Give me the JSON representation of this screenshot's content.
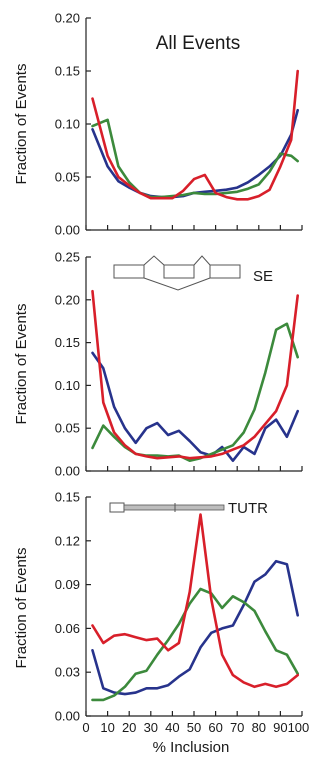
{
  "colors": {
    "blue": "#27338c",
    "green": "#3c8a3c",
    "red": "#d81f2a",
    "axis": "#222222",
    "schematic": "#555555"
  },
  "chart_data": [
    {
      "type": "line",
      "title": "All Events",
      "ylabel": "Fraction of Events",
      "xlabel": "",
      "ylim": [
        0,
        0.2
      ],
      "xlim": [
        0,
        100
      ],
      "yticks": [
        "0.00",
        "0.05",
        "0.10",
        "0.15",
        "0.20"
      ],
      "grid": false,
      "x": [
        3,
        10,
        15,
        20,
        25,
        30,
        35,
        40,
        45,
        50,
        55,
        60,
        65,
        70,
        75,
        80,
        85,
        90,
        95,
        98
      ],
      "series": [
        {
          "color": "blue",
          "values": [
            0.095,
            0.06,
            0.046,
            0.04,
            0.035,
            0.032,
            0.031,
            0.031,
            0.032,
            0.035,
            0.036,
            0.037,
            0.038,
            0.04,
            0.045,
            0.052,
            0.06,
            0.07,
            0.09,
            0.113
          ]
        },
        {
          "color": "green",
          "values": [
            0.098,
            0.104,
            0.06,
            0.045,
            0.035,
            0.031,
            0.031,
            0.032,
            0.033,
            0.035,
            0.034,
            0.034,
            0.035,
            0.036,
            0.039,
            0.043,
            0.055,
            0.072,
            0.07,
            0.065
          ]
        },
        {
          "color": "red",
          "values": [
            0.124,
            0.07,
            0.05,
            0.042,
            0.035,
            0.03,
            0.03,
            0.03,
            0.037,
            0.048,
            0.052,
            0.035,
            0.031,
            0.029,
            0.029,
            0.032,
            0.038,
            0.06,
            0.085,
            0.15
          ]
        }
      ]
    },
    {
      "type": "line",
      "title": "",
      "ylabel": "Fraction of Events",
      "xlabel": "",
      "ylim": [
        0,
        0.25
      ],
      "xlim": [
        0,
        100
      ],
      "yticks": [
        "0.00",
        "0.05",
        "0.10",
        "0.15",
        "0.20",
        "0.25"
      ],
      "annotation": "SE",
      "grid": false,
      "x": [
        3,
        8,
        13,
        18,
        23,
        28,
        33,
        38,
        43,
        48,
        53,
        58,
        63,
        68,
        73,
        78,
        83,
        88,
        93,
        98
      ],
      "series": [
        {
          "color": "blue",
          "values": [
            0.138,
            0.12,
            0.075,
            0.05,
            0.033,
            0.05,
            0.056,
            0.042,
            0.047,
            0.035,
            0.022,
            0.018,
            0.028,
            0.012,
            0.028,
            0.02,
            0.05,
            0.06,
            0.04,
            0.07
          ]
        },
        {
          "color": "green",
          "values": [
            0.027,
            0.053,
            0.04,
            0.028,
            0.02,
            0.018,
            0.018,
            0.017,
            0.018,
            0.012,
            0.015,
            0.02,
            0.025,
            0.03,
            0.045,
            0.072,
            0.115,
            0.165,
            0.172,
            0.133
          ]
        },
        {
          "color": "red",
          "values": [
            0.21,
            0.08,
            0.045,
            0.03,
            0.02,
            0.017,
            0.015,
            0.016,
            0.017,
            0.015,
            0.016,
            0.017,
            0.02,
            0.025,
            0.03,
            0.04,
            0.055,
            0.07,
            0.1,
            0.205
          ]
        }
      ]
    },
    {
      "type": "line",
      "title": "",
      "ylabel": "Fraction of Events",
      "xlabel": "% Inclusion",
      "ylim": [
        0,
        0.15
      ],
      "xlim": [
        0,
        100
      ],
      "yticks": [
        "0.00",
        "0.03",
        "0.06",
        "0.09",
        "0.12",
        "0.15"
      ],
      "xticks": [
        "0",
        "10",
        "20",
        "30",
        "40",
        "50",
        "60",
        "70",
        "80",
        "90100"
      ],
      "xtick_values": [
        0,
        10,
        20,
        30,
        40,
        50,
        60,
        70,
        80,
        95
      ],
      "annotation": "TUTR",
      "grid": false,
      "x": [
        3,
        8,
        13,
        18,
        23,
        28,
        33,
        38,
        43,
        48,
        53,
        58,
        63,
        68,
        73,
        78,
        83,
        88,
        93,
        98
      ],
      "series": [
        {
          "color": "blue",
          "values": [
            0.045,
            0.019,
            0.016,
            0.015,
            0.016,
            0.019,
            0.019,
            0.021,
            0.027,
            0.032,
            0.047,
            0.057,
            0.06,
            0.062,
            0.076,
            0.092,
            0.097,
            0.106,
            0.104,
            0.069
          ]
        },
        {
          "color": "green",
          "values": [
            0.011,
            0.011,
            0.014,
            0.02,
            0.029,
            0.031,
            0.042,
            0.052,
            0.063,
            0.077,
            0.087,
            0.084,
            0.074,
            0.082,
            0.078,
            0.072,
            0.058,
            0.045,
            0.042,
            0.029
          ]
        },
        {
          "color": "red",
          "values": [
            0.062,
            0.05,
            0.055,
            0.056,
            0.054,
            0.052,
            0.053,
            0.045,
            0.05,
            0.085,
            0.138,
            0.08,
            0.042,
            0.028,
            0.023,
            0.02,
            0.022,
            0.02,
            0.022,
            0.028
          ]
        }
      ]
    }
  ]
}
